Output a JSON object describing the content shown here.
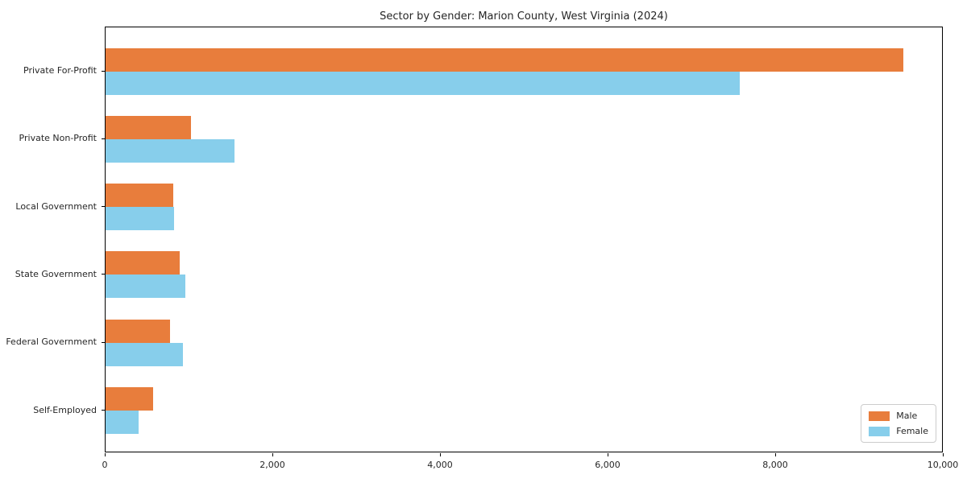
{
  "chart_data": {
    "type": "bar",
    "orientation": "horizontal",
    "title": "Sector by Gender: Marion County, West Virginia (2024)",
    "categories": [
      "Private For-Profit",
      "Private Non-Profit",
      "Local Government",
      "State Government",
      "Federal Government",
      "Self-Employed"
    ],
    "series": [
      {
        "name": "Male",
        "color": "#e87d3c",
        "values": [
          9520,
          1020,
          810,
          880,
          770,
          570
        ]
      },
      {
        "name": "Female",
        "color": "#87ceeb",
        "values": [
          7570,
          1540,
          820,
          950,
          920,
          390
        ]
      }
    ],
    "xlabel": "",
    "ylabel": "",
    "xlim": [
      0,
      10000
    ],
    "xticks": [
      0,
      2000,
      4000,
      6000,
      8000,
      10000
    ],
    "xtick_labels": [
      "0",
      "2,000",
      "4,000",
      "6,000",
      "8,000",
      "10,000"
    ],
    "grid": false,
    "legend_position": "lower right",
    "colors": {
      "male": "#e87d3c",
      "female": "#87ceeb",
      "spine": "#000000",
      "legend_border": "#cccccc",
      "text": "#262626"
    }
  }
}
